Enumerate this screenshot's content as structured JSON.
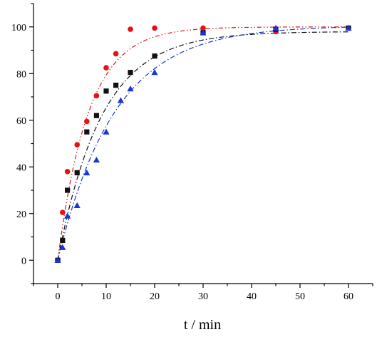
{
  "chart_data": {
    "type": "scatter",
    "title": "",
    "xlabel": "t / min",
    "ylabel": "",
    "xlim": [
      -5,
      65
    ],
    "ylim": [
      -10,
      110
    ],
    "xticks": [
      0,
      10,
      20,
      30,
      40,
      50,
      60
    ],
    "yticks": [
      0,
      20,
      40,
      60,
      80,
      100
    ],
    "grid": false,
    "legend": "none",
    "series": [
      {
        "marker": "circle",
        "color": "#e81010",
        "line_style": "dash-dot-dot",
        "points": [
          [
            0,
            0
          ],
          [
            1,
            20.5
          ],
          [
            2,
            38
          ],
          [
            4,
            49.5
          ],
          [
            6,
            59.5
          ],
          [
            8,
            70.5
          ],
          [
            10,
            82.5
          ],
          [
            12,
            88.5
          ],
          [
            15,
            99
          ],
          [
            20,
            99.5
          ],
          [
            30,
            99.5
          ],
          [
            45,
            98
          ],
          [
            60,
            99.5
          ]
        ],
        "fit": {
          "a": 100,
          "k": 0.158
        }
      },
      {
        "marker": "square",
        "color": "#111111",
        "line_style": "dash-dot",
        "points": [
          [
            0,
            0
          ],
          [
            1,
            8.5
          ],
          [
            2,
            30
          ],
          [
            4,
            37.5
          ],
          [
            6,
            55
          ],
          [
            8,
            62
          ],
          [
            10,
            72.5
          ],
          [
            12,
            75
          ],
          [
            15,
            80.5
          ],
          [
            20,
            87.5
          ],
          [
            30,
            97.5
          ],
          [
            45,
            99
          ],
          [
            60,
            99.5
          ]
        ],
        "fit": {
          "a": 98,
          "k": 0.11
        }
      },
      {
        "marker": "triangle",
        "color": "#1a35d6",
        "line_style": "dash-dot",
        "points": [
          [
            0,
            0
          ],
          [
            1,
            5.5
          ],
          [
            2,
            19
          ],
          [
            4,
            23.5
          ],
          [
            6,
            37.5
          ],
          [
            8,
            43
          ],
          [
            10,
            55
          ],
          [
            13,
            68.5
          ],
          [
            15,
            73.5
          ],
          [
            20,
            80.5
          ],
          [
            30,
            97.5
          ],
          [
            45,
            99.5
          ],
          [
            60,
            99.5
          ]
        ],
        "fit": {
          "a": 100.5,
          "k": 0.085
        }
      }
    ]
  }
}
